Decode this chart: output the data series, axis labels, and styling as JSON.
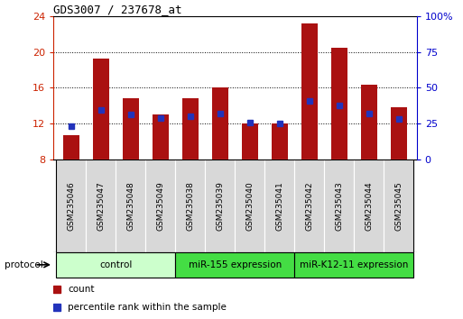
{
  "title": "GDS3007 / 237678_at",
  "samples": [
    "GSM235046",
    "GSM235047",
    "GSM235048",
    "GSM235049",
    "GSM235038",
    "GSM235039",
    "GSM235040",
    "GSM235041",
    "GSM235042",
    "GSM235043",
    "GSM235044",
    "GSM235045"
  ],
  "count_values": [
    10.7,
    19.2,
    14.8,
    13.0,
    14.8,
    16.0,
    12.0,
    12.0,
    23.2,
    20.5,
    16.3,
    13.8
  ],
  "percentile_values": [
    11.75,
    13.5,
    13.0,
    12.6,
    12.8,
    13.1,
    12.1,
    12.0,
    14.5,
    14.0,
    13.1,
    12.5
  ],
  "ymin": 8,
  "ymax": 24,
  "yticks": [
    8,
    12,
    16,
    20,
    24
  ],
  "right_ytick_labels": [
    "0",
    "25",
    "50",
    "75",
    "100%"
  ],
  "bar_color": "#aa1111",
  "percentile_color": "#2233bb",
  "bar_width": 0.55,
  "groups": [
    {
      "label": "control",
      "start": 0,
      "end": 4,
      "color": "#ccffcc"
    },
    {
      "label": "miR-155 expression",
      "start": 4,
      "end": 8,
      "color": "#44dd44"
    },
    {
      "label": "miR-K12-11 expression",
      "start": 8,
      "end": 12,
      "color": "#44dd44"
    }
  ],
  "protocol_label": "protocol",
  "legend_count_label": "count",
  "legend_percentile_label": "percentile rank within the sample",
  "title_color": "#000000",
  "left_tick_color": "#cc2200",
  "right_tick_color": "#0000cc",
  "gridline_ticks": [
    12,
    16,
    20
  ]
}
